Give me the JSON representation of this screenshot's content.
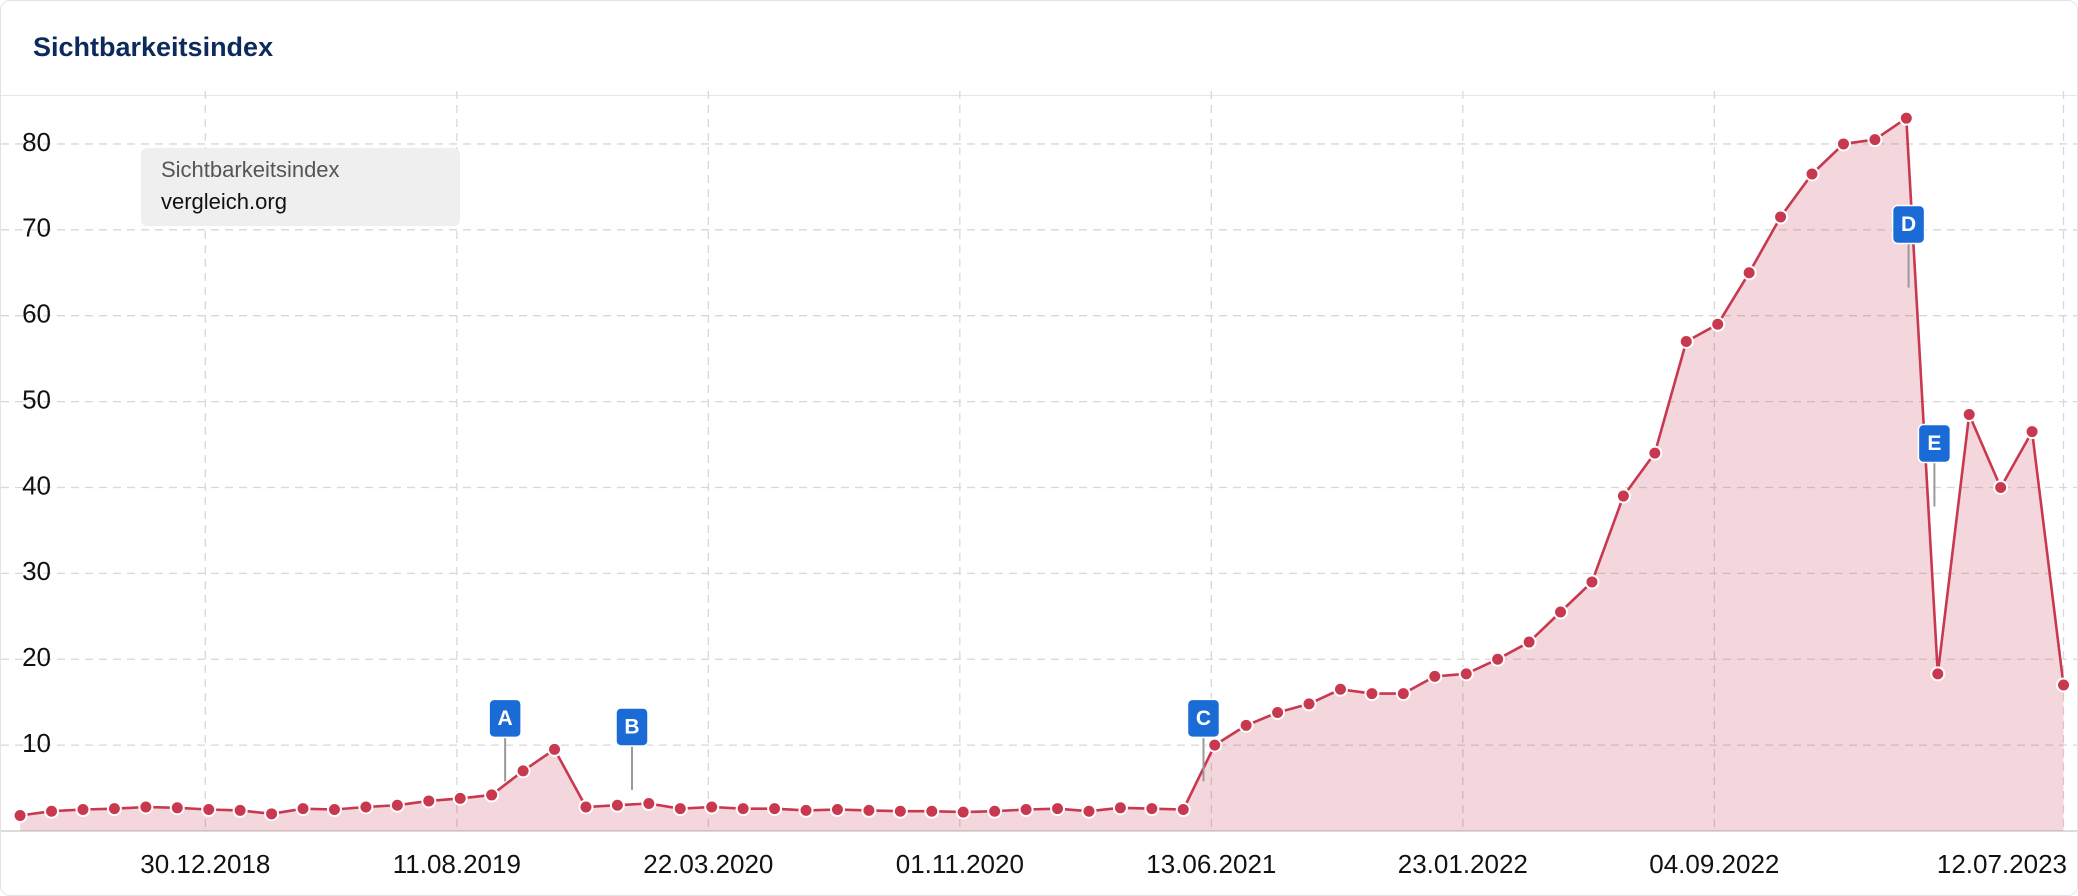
{
  "chart_data": {
    "type": "line",
    "title": "Sichtbarkeitsindex",
    "legend_title": "Sichtbarkeitsindex",
    "x": [
      "18.07.2018",
      "15.08.2018",
      "12.09.2018",
      "10.10.2018",
      "07.11.2018",
      "05.12.2018",
      "02.01.2019",
      "30.01.2019",
      "27.02.2019",
      "27.03.2019",
      "24.04.2019",
      "22.05.2019",
      "19.06.2019",
      "17.07.2019",
      "14.08.2019",
      "11.09.2019",
      "09.10.2019",
      "06.11.2019",
      "04.12.2019",
      "01.01.2020",
      "29.01.2020",
      "26.02.2020",
      "25.03.2020",
      "22.04.2020",
      "20.05.2020",
      "17.06.2020",
      "15.07.2020",
      "12.08.2020",
      "09.09.2020",
      "07.10.2020",
      "04.11.2020",
      "02.12.2020",
      "30.12.2020",
      "27.01.2021",
      "24.02.2021",
      "24.03.2021",
      "21.04.2021",
      "19.05.2021",
      "16.06.2021",
      "14.07.2021",
      "11.08.2021",
      "08.09.2021",
      "06.10.2021",
      "03.11.2021",
      "01.12.2021",
      "29.12.2021",
      "26.01.2022",
      "23.02.2022",
      "23.03.2022",
      "20.04.2022",
      "18.05.2022",
      "15.06.2022",
      "13.07.2022",
      "10.08.2022",
      "07.09.2022",
      "05.10.2022",
      "02.11.2022",
      "30.11.2022",
      "28.12.2022",
      "25.01.2023",
      "22.02.2023",
      "22.03.2023",
      "19.04.2023",
      "17.05.2023",
      "14.06.2023",
      "12.07.2023"
    ],
    "series": [
      {
        "name": "vergleich.org",
        "color": "#c8384f",
        "values": [
          1.8,
          2.3,
          2.5,
          2.6,
          2.8,
          2.7,
          2.5,
          2.4,
          2.0,
          2.6,
          2.5,
          2.8,
          3.0,
          3.5,
          3.8,
          4.2,
          7.0,
          9.5,
          2.8,
          3.0,
          3.2,
          2.6,
          2.8,
          2.6,
          2.6,
          2.4,
          2.5,
          2.4,
          2.3,
          2.3,
          2.2,
          2.3,
          2.5,
          2.6,
          2.3,
          2.7,
          2.6,
          2.5,
          10.0,
          12.3,
          13.8,
          14.8,
          16.5,
          16.0,
          16.0,
          18.0,
          18.3,
          20.0,
          22.0,
          25.5,
          29.0,
          39.0,
          44.0,
          57.0,
          59.0,
          65.0,
          71.5,
          76.5,
          80.0,
          80.5,
          83.0,
          18.3,
          48.5,
          40.0,
          46.5,
          17.0
        ]
      }
    ],
    "xlim": [
      "01.07.2018",
      "24.07.2023"
    ],
    "xticks": [
      "30.12.2018",
      "11.08.2019",
      "22.03.2020",
      "01.11.2020",
      "13.06.2021",
      "23.01.2022",
      "04.09.2022",
      "12.07.2023"
    ],
    "ylim": [
      0,
      85
    ],
    "yticks": [
      10,
      20,
      30,
      40,
      50,
      60,
      70,
      80
    ],
    "grid": true,
    "annotations": [
      {
        "label": "A",
        "x": "23.09.2019",
        "y": 13
      },
      {
        "label": "B",
        "x": "14.01.2020",
        "y": 12
      },
      {
        "label": "C",
        "x": "06.06.2021",
        "y": 13
      },
      {
        "label": "D",
        "x": "24.02.2023",
        "y": 70.5
      },
      {
        "label": "E",
        "x": "19.03.2023",
        "y": 45
      }
    ]
  }
}
